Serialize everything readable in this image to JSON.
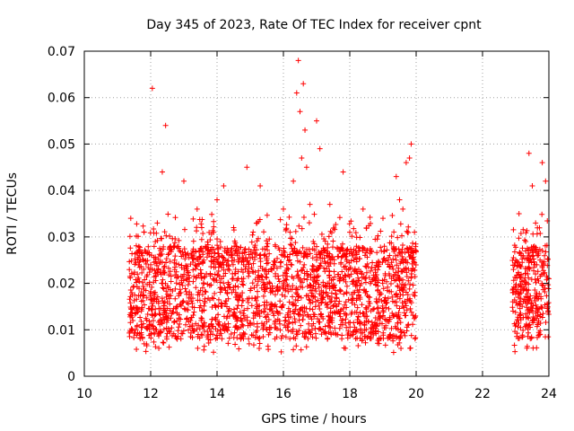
{
  "chart_data": {
    "type": "scatter",
    "title": "Day 345 of 2023, Rate Of TEC Index for receiver cpnt",
    "xlabel": "GPS time / hours",
    "ylabel": "ROTI / TECUs",
    "xlim": [
      10,
      24
    ],
    "ylim": [
      0,
      0.07
    ],
    "x_ticks": [
      "10",
      "12",
      "14",
      "16",
      "18",
      "20",
      "22",
      "24"
    ],
    "y_ticks": [
      "0",
      "0.01",
      "0.02",
      "0.03",
      "0.04",
      "0.05",
      "0.06",
      "0.07"
    ],
    "grid": true,
    "marker": "+",
    "color": "#ff0000",
    "series": [
      {
        "x": [
          11.4,
          11.6,
          11.8,
          12.0,
          12.05,
          12.2,
          12.35,
          12.45,
          12.5,
          12.6,
          12.8,
          13.0,
          13.1,
          13.2,
          13.4,
          13.6,
          13.8,
          14.0,
          14.1,
          14.2,
          14.3,
          14.5,
          14.8,
          14.9,
          15.0,
          15.2,
          15.3,
          15.5,
          15.6,
          15.8,
          16.0,
          16.1,
          16.2,
          16.3,
          16.4,
          16.45,
          16.5,
          16.55,
          16.6,
          16.65,
          16.7,
          16.8,
          16.9,
          17.0,
          17.1,
          17.2,
          17.3,
          17.4,
          17.6,
          17.8,
          17.9,
          18.0,
          18.2,
          18.4,
          18.6,
          18.8,
          19.0,
          19.2,
          19.4,
          19.5,
          19.6,
          19.7,
          19.8,
          19.85,
          19.9,
          19.95,
          20.0,
          23.0,
          23.1,
          23.3,
          23.4,
          23.5,
          23.6,
          23.8,
          23.9,
          24.0
        ],
        "y": [
          0.034,
          0.022,
          0.031,
          0.024,
          0.062,
          0.033,
          0.044,
          0.054,
          0.016,
          0.028,
          0.008,
          0.042,
          0.021,
          0.012,
          0.036,
          0.025,
          0.009,
          0.038,
          0.029,
          0.041,
          0.018,
          0.032,
          0.024,
          0.045,
          0.011,
          0.033,
          0.041,
          0.028,
          0.019,
          0.014,
          0.036,
          0.024,
          0.031,
          0.042,
          0.061,
          0.068,
          0.057,
          0.047,
          0.063,
          0.053,
          0.045,
          0.037,
          0.029,
          0.055,
          0.049,
          0.018,
          0.026,
          0.037,
          0.015,
          0.044,
          0.023,
          0.031,
          0.028,
          0.036,
          0.017,
          0.021,
          0.034,
          0.026,
          0.043,
          0.038,
          0.036,
          0.046,
          0.047,
          0.05,
          0.023,
          0.031,
          0.027,
          0.025,
          0.035,
          0.029,
          0.048,
          0.041,
          0.033,
          0.046,
          0.042,
          0.021
        ],
        "band": "dense background points spanning roughly 0.005 to 0.030 continuously from 11.35 to 20.0 h and from 22.9 to 24.0 h"
      }
    ]
  }
}
